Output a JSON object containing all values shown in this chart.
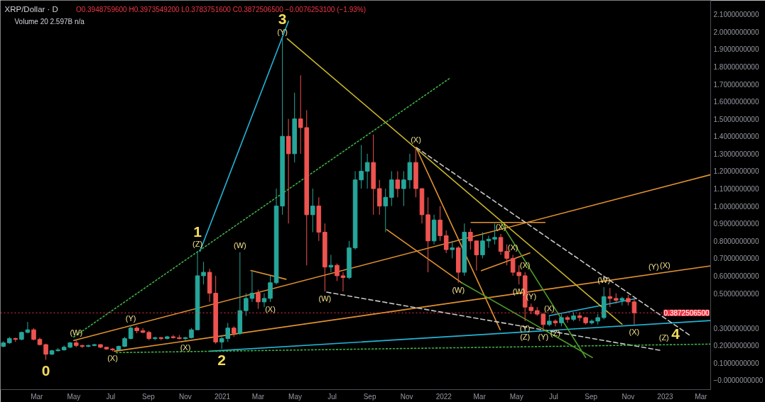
{
  "chart_data": {
    "type": "candlestick",
    "title": "XRP/Dollar · D",
    "subtitle": "O0.3948759600 H0.3973549200 L0.3783751600 C0.3872506500 −0.0076253100 (−1.93%)",
    "x": [
      "2020-01-06",
      "2020-01-16",
      "2020-01-26",
      "2020-02-05",
      "2020-02-15",
      "2020-02-25",
      "2020-03-06",
      "2020-03-16",
      "2020-03-26",
      "2020-04-05",
      "2020-04-15",
      "2020-04-25",
      "2020-05-05",
      "2020-05-15",
      "2020-05-25",
      "2020-06-04",
      "2020-06-14",
      "2020-06-24",
      "2020-07-04",
      "2020-07-14",
      "2020-07-24",
      "2020-08-03",
      "2020-08-13",
      "2020-08-23",
      "2020-09-02",
      "2020-09-12",
      "2020-09-22",
      "2020-10-02",
      "2020-10-12",
      "2020-10-22",
      "2020-11-01",
      "2020-11-11",
      "2020-11-21",
      "2020-12-01",
      "2020-12-11",
      "2020-12-21",
      "2020-12-31",
      "2021-01-10",
      "2021-01-20",
      "2021-01-30",
      "2021-02-09",
      "2021-02-19",
      "2021-03-01",
      "2021-03-11",
      "2021-03-21",
      "2021-03-31",
      "2021-04-10",
      "2021-04-20",
      "2021-04-30",
      "2021-05-10",
      "2021-05-20",
      "2021-05-30",
      "2021-06-09",
      "2021-06-19",
      "2021-06-29",
      "2021-07-09",
      "2021-07-19",
      "2021-07-29",
      "2021-08-08",
      "2021-08-18",
      "2021-08-28",
      "2021-09-07",
      "2021-09-17",
      "2021-09-27",
      "2021-10-07",
      "2021-10-17",
      "2021-10-27",
      "2021-11-06",
      "2021-11-16",
      "2021-11-26",
      "2021-12-06",
      "2021-12-16",
      "2021-12-26",
      "2022-01-05",
      "2022-01-15",
      "2022-01-25",
      "2022-02-04",
      "2022-02-14",
      "2022-02-24",
      "2022-03-06",
      "2022-03-16",
      "2022-03-26",
      "2022-04-05",
      "2022-04-15",
      "2022-04-25",
      "2022-05-05",
      "2022-05-15",
      "2022-05-25",
      "2022-06-04",
      "2022-06-14",
      "2022-06-24",
      "2022-07-04",
      "2022-07-14",
      "2022-07-24",
      "2022-08-03",
      "2022-08-13",
      "2022-08-23",
      "2022-09-02",
      "2022-09-12",
      "2022-09-22",
      "2022-10-02",
      "2022-10-12",
      "2022-10-22",
      "2022-11-01",
      "2022-11-11"
    ],
    "ohlc": [
      [
        0.195,
        0.225,
        0.19,
        0.215
      ],
      [
        0.215,
        0.25,
        0.21,
        0.24
      ],
      [
        0.24,
        0.245,
        0.22,
        0.235
      ],
      [
        0.235,
        0.28,
        0.23,
        0.275
      ],
      [
        0.275,
        0.335,
        0.27,
        0.29
      ],
      [
        0.29,
        0.3,
        0.23,
        0.235
      ],
      [
        0.235,
        0.245,
        0.2,
        0.205
      ],
      [
        0.205,
        0.21,
        0.118,
        0.15
      ],
      [
        0.15,
        0.175,
        0.145,
        0.17
      ],
      [
        0.17,
        0.185,
        0.165,
        0.175
      ],
      [
        0.175,
        0.2,
        0.17,
        0.19
      ],
      [
        0.19,
        0.22,
        0.185,
        0.215
      ],
      [
        0.215,
        0.233,
        0.19,
        0.2
      ],
      [
        0.2,
        0.205,
        0.185,
        0.195
      ],
      [
        0.195,
        0.205,
        0.19,
        0.2
      ],
      [
        0.2,
        0.21,
        0.195,
        0.205
      ],
      [
        0.205,
        0.208,
        0.185,
        0.19
      ],
      [
        0.19,
        0.192,
        0.175,
        0.18
      ],
      [
        0.18,
        0.185,
        0.167,
        0.175
      ],
      [
        0.175,
        0.2,
        0.172,
        0.195
      ],
      [
        0.195,
        0.25,
        0.19,
        0.24
      ],
      [
        0.24,
        0.315,
        0.235,
        0.3
      ],
      [
        0.3,
        0.31,
        0.27,
        0.285
      ],
      [
        0.285,
        0.3,
        0.27,
        0.275
      ],
      [
        0.275,
        0.285,
        0.23,
        0.24
      ],
      [
        0.24,
        0.25,
        0.23,
        0.245
      ],
      [
        0.245,
        0.25,
        0.23,
        0.24
      ],
      [
        0.24,
        0.255,
        0.235,
        0.25
      ],
      [
        0.25,
        0.26,
        0.24,
        0.245
      ],
      [
        0.245,
        0.26,
        0.235,
        0.24
      ],
      [
        0.24,
        0.25,
        0.229,
        0.245
      ],
      [
        0.245,
        0.3,
        0.24,
        0.29
      ],
      [
        0.29,
        0.74,
        0.29,
        0.6
      ],
      [
        0.6,
        0.68,
        0.55,
        0.62
      ],
      [
        0.62,
        0.64,
        0.45,
        0.5
      ],
      [
        0.5,
        0.6,
        0.21,
        0.22
      ],
      [
        0.22,
        0.26,
        0.18,
        0.24
      ],
      [
        0.24,
        0.33,
        0.22,
        0.3
      ],
      [
        0.3,
        0.31,
        0.25,
        0.27
      ],
      [
        0.27,
        0.735,
        0.26,
        0.4
      ],
      [
        0.4,
        0.5,
        0.37,
        0.47
      ],
      [
        0.47,
        0.63,
        0.45,
        0.5
      ],
      [
        0.5,
        0.52,
        0.41,
        0.45
      ],
      [
        0.45,
        0.5,
        0.42,
        0.47
      ],
      [
        0.47,
        0.6,
        0.45,
        0.56
      ],
      [
        0.56,
        1.1,
        0.55,
        1.0
      ],
      [
        1.0,
        1.96,
        0.95,
        1.4
      ],
      [
        1.4,
        1.5,
        0.9,
        1.3
      ],
      [
        1.3,
        1.65,
        1.25,
        1.5
      ],
      [
        1.5,
        1.75,
        1.3,
        1.45
      ],
      [
        1.45,
        1.55,
        0.66,
        0.95
      ],
      [
        0.95,
        1.1,
        0.85,
        1.0
      ],
      [
        1.0,
        1.05,
        0.8,
        0.85
      ],
      [
        0.85,
        0.9,
        0.51,
        0.65
      ],
      [
        0.65,
        0.72,
        0.62,
        0.66
      ],
      [
        0.66,
        0.67,
        0.57,
        0.6
      ],
      [
        0.6,
        0.62,
        0.51,
        0.59
      ],
      [
        0.59,
        0.8,
        0.58,
        0.76
      ],
      [
        0.76,
        1.2,
        0.75,
        1.15
      ],
      [
        1.15,
        1.35,
        1.1,
        1.2
      ],
      [
        1.2,
        1.3,
        1.1,
        1.25
      ],
      [
        1.25,
        1.41,
        0.95,
        1.1
      ],
      [
        1.1,
        1.15,
        0.95,
        1.0
      ],
      [
        1.0,
        1.1,
        0.85,
        1.05
      ],
      [
        1.05,
        1.2,
        1.0,
        1.15
      ],
      [
        1.15,
        1.2,
        1.05,
        1.1
      ],
      [
        1.1,
        1.2,
        1.0,
        1.15
      ],
      [
        1.15,
        1.3,
        1.1,
        1.25
      ],
      [
        1.25,
        1.34,
        1.05,
        1.1
      ],
      [
        1.1,
        1.1,
        0.9,
        0.95
      ],
      [
        0.95,
        1.05,
        0.62,
        0.8
      ],
      [
        0.8,
        0.95,
        0.78,
        0.92
      ],
      [
        0.92,
        1.0,
        0.8,
        0.83
      ],
      [
        0.83,
        0.86,
        0.73,
        0.75
      ],
      [
        0.75,
        0.8,
        0.7,
        0.76
      ],
      [
        0.76,
        0.77,
        0.56,
        0.62
      ],
      [
        0.62,
        0.9,
        0.6,
        0.85
      ],
      [
        0.85,
        0.87,
        0.75,
        0.8
      ],
      [
        0.8,
        0.8,
        0.63,
        0.72
      ],
      [
        0.72,
        0.85,
        0.7,
        0.8
      ],
      [
        0.8,
        0.83,
        0.76,
        0.81
      ],
      [
        0.81,
        0.9,
        0.78,
        0.82
      ],
      [
        0.82,
        0.84,
        0.72,
        0.74
      ],
      [
        0.74,
        0.78,
        0.66,
        0.7
      ],
      [
        0.7,
        0.72,
        0.6,
        0.62
      ],
      [
        0.62,
        0.66,
        0.55,
        0.6
      ],
      [
        0.6,
        0.62,
        0.34,
        0.42
      ],
      [
        0.42,
        0.44,
        0.38,
        0.4
      ],
      [
        0.4,
        0.42,
        0.37,
        0.38
      ],
      [
        0.38,
        0.385,
        0.29,
        0.32
      ],
      [
        0.32,
        0.37,
        0.31,
        0.34
      ],
      [
        0.34,
        0.35,
        0.31,
        0.33
      ],
      [
        0.33,
        0.38,
        0.31,
        0.36
      ],
      [
        0.36,
        0.37,
        0.33,
        0.35
      ],
      [
        0.35,
        0.39,
        0.34,
        0.37
      ],
      [
        0.37,
        0.39,
        0.34,
        0.36
      ],
      [
        0.36,
        0.365,
        0.32,
        0.33
      ],
      [
        0.33,
        0.35,
        0.32,
        0.34
      ],
      [
        0.34,
        0.38,
        0.32,
        0.36
      ],
      [
        0.36,
        0.535,
        0.35,
        0.48
      ],
      [
        0.48,
        0.53,
        0.42,
        0.47
      ],
      [
        0.47,
        0.5,
        0.44,
        0.46
      ],
      [
        0.46,
        0.48,
        0.43,
        0.47
      ],
      [
        0.47,
        0.49,
        0.43,
        0.45
      ],
      [
        0.45,
        0.47,
        0.32,
        0.38725065
      ]
    ],
    "colors": [
      "#26a69a",
      "#26a69a",
      "#ef5350",
      "#26a69a",
      "#26a69a",
      "#ef5350",
      "#ef5350",
      "#ef5350",
      "#26a69a",
      "#26a69a",
      "#26a69a",
      "#26a69a",
      "#ef5350",
      "#ef5350",
      "#26a69a",
      "#26a69a",
      "#ef5350",
      "#ef5350",
      "#ef5350",
      "#26a69a",
      "#26a69a",
      "#26a69a",
      "#ef5350",
      "#ef5350",
      "#ef5350",
      "#26a69a",
      "#ef5350",
      "#26a69a",
      "#ef5350",
      "#ef5350",
      "#26a69a",
      "#26a69a",
      "#26a69a",
      "#26a69a",
      "#ef5350",
      "#ef5350",
      "#26a69a",
      "#26a69a",
      "#ef5350",
      "#26a69a",
      "#26a69a",
      "#26a69a",
      "#ef5350",
      "#26a69a",
      "#26a69a",
      "#26a69a",
      "#26a69a",
      "#ef5350",
      "#26a69a",
      "#ef5350",
      "#ef5350",
      "#26a69a",
      "#ef5350",
      "#ef5350",
      "#26a69a",
      "#ef5350",
      "#ef5350",
      "#26a69a",
      "#26a69a",
      "#26a69a",
      "#26a69a",
      "#ef5350",
      "#ef5350",
      "#26a69a",
      "#26a69a",
      "#ef5350",
      "#26a69a",
      "#26a69a",
      "#ef5350",
      "#ef5350",
      "#ef5350",
      "#26a69a",
      "#ef5350",
      "#ef5350",
      "#26a69a",
      "#ef5350",
      "#26a69a",
      "#ef5350",
      "#ef5350",
      "#26a69a",
      "#26a69a",
      "#26a69a",
      "#ef5350",
      "#ef5350",
      "#ef5350",
      "#ef5350",
      "#ef5350",
      "#ef5350",
      "#ef5350",
      "#ef5350",
      "#26a69a",
      "#ef5350",
      "#26a69a",
      "#ef5350",
      "#26a69a",
      "#ef5350",
      "#ef5350",
      "#26a69a",
      "#26a69a",
      "#26a69a",
      "#ef5350",
      "#ef5350",
      "#26a69a",
      "#ef5350",
      "#ef5350"
    ],
    "series": [
      {
        "type": "line",
        "color": "#22b5d6",
        "line_style": "solid",
        "x": [
          "2020-11-25",
          "2021-04-20"
        ],
        "values": [
          0.74,
          2.06
        ]
      },
      {
        "type": "line",
        "color": "#22b5d6",
        "line_style": "solid",
        "x": [
          "2020-12-11",
          "2023-03-17"
        ],
        "values": [
          0.167,
          0.343
        ]
      },
      {
        "type": "line",
        "color": "#22b5d6",
        "line_style": "solid",
        "x": [
          "2022-06-24",
          "2022-11-13"
        ],
        "values": [
          0.371,
          0.469
        ]
      },
      {
        "type": "line",
        "color": "#e3922f",
        "line_style": "solid",
        "x": [
          "2020-05-01",
          "2023-03-17"
        ],
        "values": [
          0.229,
          1.18
        ]
      },
      {
        "type": "line",
        "color": "#e3922f",
        "line_style": "solid",
        "x": [
          "2020-07-07",
          "2023-03-17"
        ],
        "values": [
          0.167,
          0.657
        ]
      },
      {
        "type": "line",
        "color": "#e3922f",
        "line_style": "solid",
        "x": [
          "2021-02-17",
          "2021-04-16"
        ],
        "values": [
          0.63,
          0.58
        ]
      },
      {
        "type": "line",
        "color": "#e3922f",
        "line_style": "solid",
        "x": [
          "2021-11-17",
          "2022-04-04"
        ],
        "values": [
          1.33,
          0.29
        ]
      },
      {
        "type": "line",
        "color": "#e3922f",
        "line_style": "solid",
        "x": [
          "2021-09-29",
          "2022-01-31"
        ],
        "values": [
          0.865,
          0.559
        ]
      },
      {
        "type": "line",
        "color": "#e3922f",
        "line_style": "solid",
        "x": [
          "2022-02-15",
          "2022-06-17"
        ],
        "values": [
          0.906,
          0.906
        ]
      },
      {
        "type": "line",
        "color": "#e3922f",
        "line_style": "solid",
        "x": [
          "2022-03-04",
          "2022-05-23"
        ],
        "values": [
          0.629,
          0.731
        ]
      },
      {
        "type": "line",
        "color": "#c8b62a",
        "line_style": "solid",
        "x": [
          "2021-04-18",
          "2022-10-22"
        ],
        "values": [
          1.96,
          0.322
        ]
      },
      {
        "type": "line",
        "color": "#c8c8c8",
        "line_style": "dashed",
        "x": [
          "2021-11-17",
          "2023-02-13"
        ],
        "values": [
          1.335,
          0.253
        ]
      },
      {
        "type": "line",
        "color": "#c8c8c8",
        "line_style": "dashed",
        "x": [
          "2021-06-22",
          "2022-12-26"
        ],
        "values": [
          0.506,
          0.171
        ]
      },
      {
        "type": "line",
        "color": "#3faf45",
        "line_style": "dotted",
        "x": [
          "2020-05-01",
          "2022-01-10"
        ],
        "values": [
          0.249,
          1.731
        ]
      },
      {
        "type": "line",
        "color": "#3faf45",
        "line_style": "dotted",
        "x": [
          "2020-07-10",
          "2023-03-17"
        ],
        "values": [
          0.159,
          0.208
        ]
      },
      {
        "type": "line",
        "color": "#4c9a2a",
        "line_style": "solid",
        "x": [
          "2022-01-31",
          "2022-09-03"
        ],
        "values": [
          0.559,
          0.131
        ]
      },
      {
        "type": "line",
        "color": "#4c9a2a",
        "line_style": "solid",
        "x": [
          "2022-04-05",
          "2022-08-23"
        ],
        "values": [
          0.906,
          0.131
        ]
      }
    ],
    "ref_lines": [
      {
        "axis": "y",
        "value": 0.38725065,
        "label": "0.3872506500",
        "color": "#f23645",
        "line_style": "dotted"
      }
    ],
    "annotations": [
      "Volume 20 2.597B n/a",
      {
        "text": "0",
        "x": "2020-03-16",
        "y": 0.118
      },
      {
        "text": "(W)",
        "x": "2020-05-05",
        "y": 0.233
      },
      {
        "text": "(X)",
        "x": "2020-07-04",
        "y": 0.167
      },
      {
        "text": "(Y)",
        "x": "2020-08-03",
        "y": 0.315
      },
      {
        "text": "(X)",
        "x": "2020-11-01",
        "y": 0.229
      },
      {
        "text": "(Z)",
        "x": "2020-11-21",
        "y": 0.74
      },
      {
        "text": "1",
        "x": "2020-11-21",
        "y": 0.74
      },
      {
        "text": "2",
        "x": "2020-12-31",
        "y": 0.18
      },
      {
        "text": "(W)",
        "x": "2021-01-30",
        "y": 0.735
      },
      {
        "text": "(X)",
        "x": "2021-03-21",
        "y": 0.45
      },
      {
        "text": "(Y)",
        "x": "2021-04-10",
        "y": 1.96
      },
      {
        "text": "3",
        "x": "2021-04-10",
        "y": 1.96
      },
      {
        "text": "(W)",
        "x": "2021-06-19",
        "y": 0.51
      },
      {
        "text": "(X)",
        "x": "2021-11-16",
        "y": 1.34
      },
      {
        "text": "(W)",
        "x": "2022-01-25",
        "y": 0.56
      },
      {
        "text": "(X)",
        "x": "2022-04-05",
        "y": 0.84
      },
      {
        "text": "(X)",
        "x": "2022-04-25",
        "y": 0.72
      },
      {
        "text": "(W)",
        "x": "2022-05-05",
        "y": 0.55
      },
      {
        "text": "(X)",
        "x": "2022-05-15",
        "y": 0.62
      },
      {
        "text": "(Y)",
        "x": "2022-05-25",
        "y": 0.44
      },
      {
        "text": "(Y)",
        "x": "2022-05-15",
        "y": 0.34
      },
      {
        "text": "(Z)",
        "x": "2022-05-15",
        "y": 0.34
      },
      {
        "text": "(X)",
        "x": "2022-06-24",
        "y": 0.37
      },
      {
        "text": "(Y)",
        "x": "2022-06-14",
        "y": 0.29
      },
      {
        "text": "(Z)",
        "x": "2022-07-04",
        "y": 0.31
      },
      {
        "text": "(W)",
        "x": "2022-09-22",
        "y": 0.535
      },
      {
        "text": "(X)",
        "x": "2022-11-11",
        "y": 0.32
      },
      {
        "text": "(Y)",
        "x": "2022-12-13",
        "y": 0.61
      },
      {
        "text": "(X)",
        "x": "2023-01-01",
        "y": 0.62
      },
      {
        "text": "(Z)",
        "x": "2022-12-30",
        "y": 0.204
      },
      {
        "text": "4",
        "x": "2023-01-18",
        "y": 0.205
      }
    ],
    "xlim": [
      "2020-01-01",
      "2023-03-17"
    ],
    "ylim": [
      -0.053,
      2.18
    ],
    "xticks": [
      {
        "value": "2020-03-01",
        "label": "Mar"
      },
      {
        "value": "2020-05-01",
        "label": "May"
      },
      {
        "value": "2020-07-01",
        "label": "Jul"
      },
      {
        "value": "2020-09-01",
        "label": "Sep"
      },
      {
        "value": "2020-11-01",
        "label": "Nov"
      },
      {
        "value": "2021-01-01",
        "label": "2021"
      },
      {
        "value": "2021-03-01",
        "label": "Mar"
      },
      {
        "value": "2021-05-01",
        "label": "May"
      },
      {
        "value": "2021-07-01",
        "label": "Jul"
      },
      {
        "value": "2021-09-01",
        "label": "Sep"
      },
      {
        "value": "2021-11-01",
        "label": "Nov"
      },
      {
        "value": "2022-01-01",
        "label": "2022"
      },
      {
        "value": "2022-03-01",
        "label": "Mar"
      },
      {
        "value": "2022-05-01",
        "label": "May"
      },
      {
        "value": "2022-07-01",
        "label": "Jul"
      },
      {
        "value": "2022-09-01",
        "label": "Sep"
      },
      {
        "value": "2022-11-01",
        "label": "Nov"
      },
      {
        "value": "2023-01-01",
        "label": "2023"
      },
      {
        "value": "2023-03-01",
        "label": "Mar"
      }
    ],
    "yticks": [
      {
        "value": 2.1,
        "label": "2.1000000000"
      },
      {
        "value": 2.0,
        "label": "2.0000000000"
      },
      {
        "value": 1.9,
        "label": "1.9000000000"
      },
      {
        "value": 1.8,
        "label": "1.8000000000"
      },
      {
        "value": 1.7,
        "label": "1.7000000000"
      },
      {
        "value": 1.6,
        "label": "1.6000000000"
      },
      {
        "value": 1.5,
        "label": "1.5000000000"
      },
      {
        "value": 1.4,
        "label": "1.4000000000"
      },
      {
        "value": 1.3,
        "label": "1.3000000000"
      },
      {
        "value": 1.2,
        "label": "1.2000000000"
      },
      {
        "value": 1.1,
        "label": "1.1000000000"
      },
      {
        "value": 1.0,
        "label": "1.0000000000"
      },
      {
        "value": 0.9,
        "label": "0.9000000000"
      },
      {
        "value": 0.8,
        "label": "0.8000000000"
      },
      {
        "value": 0.7,
        "label": "0.7000000000"
      },
      {
        "value": 0.6,
        "label": "0.6000000000"
      },
      {
        "value": 0.5,
        "label": "0.5000000000"
      },
      {
        "value": 0.3,
        "label": "0.3000000000"
      },
      {
        "value": 0.2,
        "label": "0.2000000000"
      },
      {
        "value": 0.1,
        "label": "0.1000000000"
      },
      {
        "value": 0,
        "label": "−0.0000000000"
      }
    ]
  }
}
